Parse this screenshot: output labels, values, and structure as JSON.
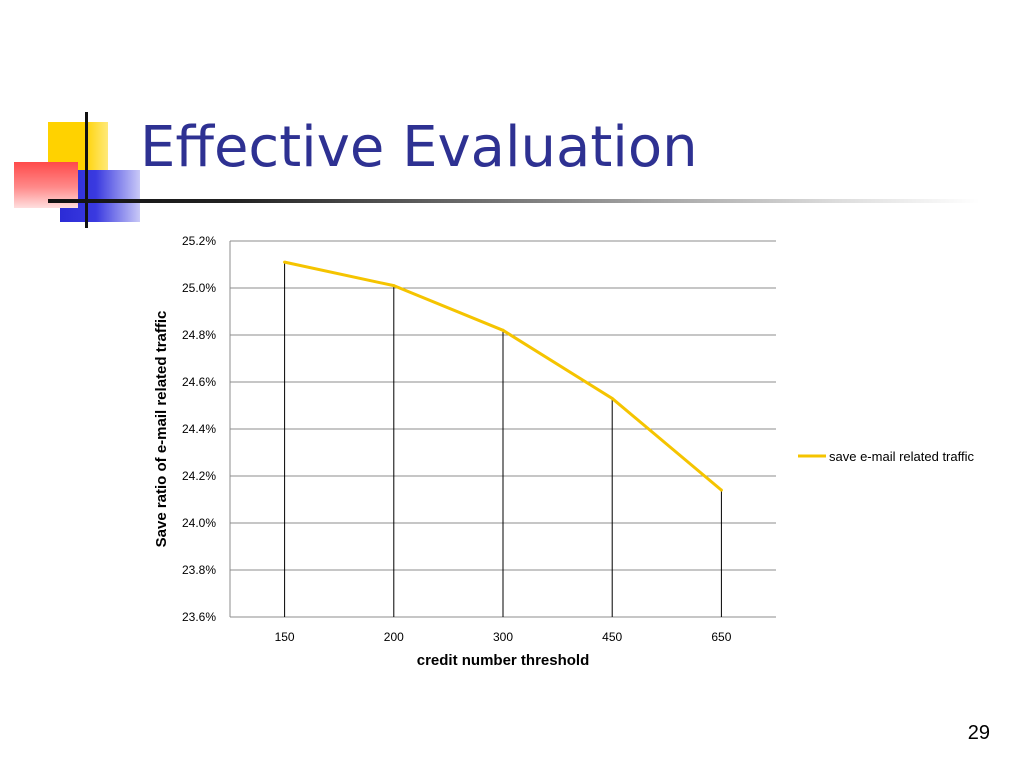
{
  "slide": {
    "title": "Effective Evaluation",
    "page_number": "29"
  },
  "colors": {
    "title": "#2e3192",
    "series": "#f5c400"
  },
  "chart_data": {
    "type": "line",
    "categories": [
      "150",
      "200",
      "300",
      "450",
      "650"
    ],
    "series": [
      {
        "name": "save e-mail related traffic",
        "values": [
          25.11,
          25.01,
          24.82,
          24.53,
          24.14
        ]
      }
    ],
    "xlabel": "credit number threshold",
    "ylabel": "Save ratio of e-mail related traffic",
    "ylim": [
      23.6,
      25.2
    ],
    "yticks": [
      "23.6%",
      "23.8%",
      "24.0%",
      "24.2%",
      "24.4%",
      "24.6%",
      "24.8%",
      "25.0%",
      "25.2%"
    ],
    "grid": true,
    "drop_lines": true,
    "legend_position": "right"
  }
}
